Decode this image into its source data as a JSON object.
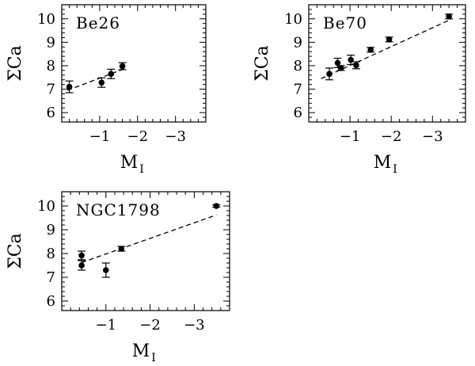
{
  "chart_data": [
    {
      "type": "scatter",
      "title": "Be26",
      "xlabel": "M",
      "xlabel_sub": "I",
      "ylabel": "ΣCa",
      "xlim": [
        0.0,
        -3.8
      ],
      "ylim": [
        5.6,
        10.6
      ],
      "xticks": [
        {
          "v": -1,
          "label": "−1"
        },
        {
          "v": -2,
          "label": "−2"
        },
        {
          "v": -3,
          "label": "−3"
        }
      ],
      "yticks": [
        6,
        7,
        8,
        9,
        10
      ],
      "points": [
        {
          "x": -0.2,
          "y": 7.1,
          "err": 0.25
        },
        {
          "x": -1.05,
          "y": 7.28,
          "err": 0.2
        },
        {
          "x": -1.3,
          "y": 7.65,
          "err": 0.2
        },
        {
          "x": -1.6,
          "y": 7.98,
          "err": 0.15
        }
      ],
      "fit": [
        [
          -0.15,
          6.95
        ],
        [
          -1.7,
          7.9
        ]
      ]
    },
    {
      "type": "scatter",
      "title": "Be70",
      "xlabel": "M",
      "xlabel_sub": "I",
      "ylabel": "ΣCa",
      "xlim": [
        0.0,
        -3.8
      ],
      "ylim": [
        5.6,
        10.6
      ],
      "xticks": [
        {
          "v": -1,
          "label": "−1"
        },
        {
          "v": -2,
          "label": "−2"
        },
        {
          "v": -3,
          "label": "−3"
        }
      ],
      "yticks": [
        6,
        7,
        8,
        9,
        10
      ],
      "points": [
        {
          "x": -0.5,
          "y": 7.65,
          "err": 0.25
        },
        {
          "x": -0.7,
          "y": 8.12,
          "err": 0.2
        },
        {
          "x": -0.78,
          "y": 7.9,
          "err": 0.1
        },
        {
          "x": -1.02,
          "y": 8.25,
          "err": 0.2
        },
        {
          "x": -1.15,
          "y": 8.02,
          "err": 0.15
        },
        {
          "x": -1.5,
          "y": 8.68,
          "err": 0.1
        },
        {
          "x": -1.95,
          "y": 9.12,
          "err": 0.1
        },
        {
          "x": -3.4,
          "y": 10.1,
          "err": 0.1
        }
      ],
      "fit": [
        [
          -0.3,
          7.45
        ],
        [
          -3.45,
          9.98
        ]
      ]
    },
    {
      "type": "scatter",
      "title": "NGC1798",
      "xlabel": "M",
      "xlabel_sub": "I",
      "ylabel": "ΣCa",
      "xlim": [
        0.0,
        -3.8
      ],
      "ylim": [
        5.6,
        10.6
      ],
      "xticks": [
        {
          "v": -1,
          "label": "−1"
        },
        {
          "v": -2,
          "label": "−2"
        },
        {
          "v": -3,
          "label": "−3"
        }
      ],
      "yticks": [
        6,
        7,
        8,
        9,
        10
      ],
      "points": [
        {
          "x": -0.45,
          "y": 7.92,
          "err": 0.18
        },
        {
          "x": -0.45,
          "y": 7.5,
          "err": 0.2
        },
        {
          "x": -1.0,
          "y": 7.3,
          "err": 0.3
        },
        {
          "x": -1.35,
          "y": 8.2,
          "err": 0.1
        },
        {
          "x": -3.5,
          "y": 10.0,
          "err": 0.05
        }
      ],
      "fit": [
        [
          -0.45,
          7.62
        ],
        [
          -3.5,
          9.62
        ]
      ]
    }
  ]
}
